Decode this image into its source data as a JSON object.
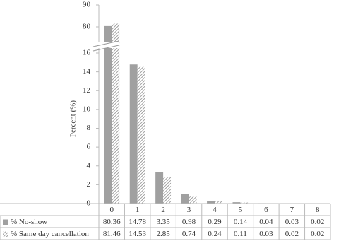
{
  "chart_data": {
    "type": "bar",
    "y_label": "Percent (%)",
    "categories": [
      "0",
      "1",
      "2",
      "3",
      "4",
      "5",
      "6",
      "7",
      "8"
    ],
    "series": [
      {
        "name": "% No-show",
        "color": "#a0a0a0",
        "values": [
          80.36,
          14.78,
          3.35,
          0.98,
          0.29,
          0.14,
          0.04,
          0.03,
          0.02
        ]
      },
      {
        "name": "% Same day cancellation",
        "color": "#9a9a9a",
        "pattern": "hatch",
        "values": [
          81.46,
          14.53,
          2.85,
          0.74,
          0.24,
          0.11,
          0.03,
          0.02,
          0.02
        ]
      }
    ],
    "ylim": [
      0,
      90
    ],
    "ybreak": [
      16,
      80
    ],
    "yticks": [
      0,
      2,
      4,
      6,
      8,
      10,
      12,
      14,
      16,
      80,
      90
    ],
    "grid": false,
    "legend": "table"
  }
}
